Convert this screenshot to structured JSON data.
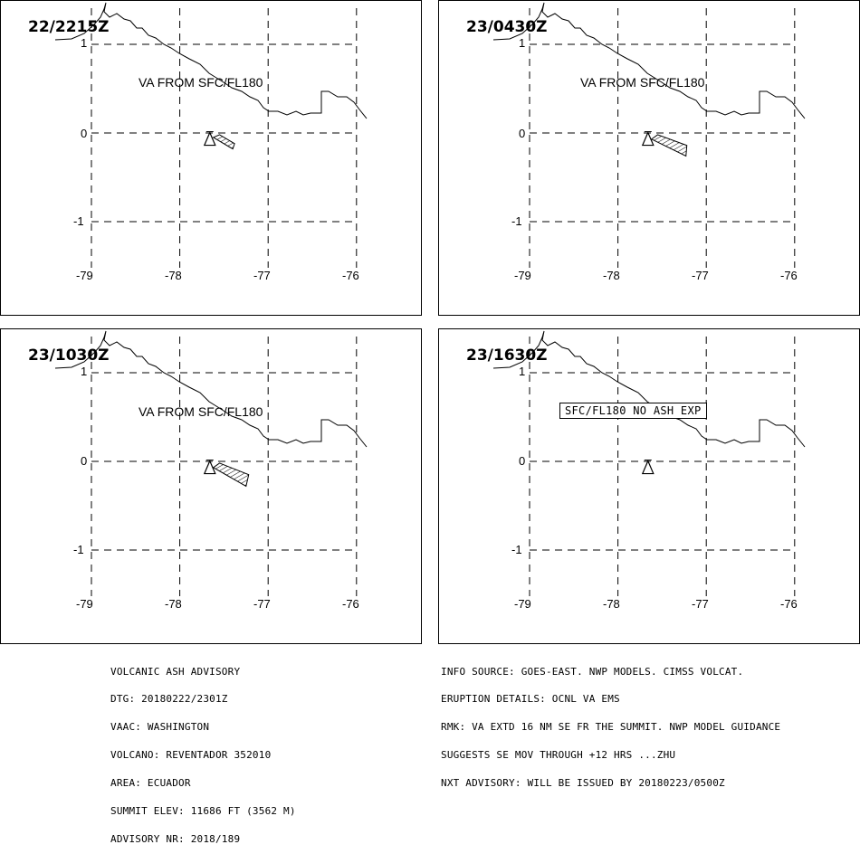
{
  "panels": [
    {
      "timestamp": "22/2215Z",
      "label": "VA FROM SFC/FL180",
      "label_boxed": false,
      "ash_polygon": [
        [
          -77.62,
          -0.05
        ],
        [
          -77.4,
          -0.18
        ],
        [
          -77.38,
          -0.12
        ],
        [
          -77.55,
          -0.02
        ]
      ],
      "show_ash": true
    },
    {
      "timestamp": "23/0430Z",
      "label": "VA FROM SFC/FL180",
      "label_boxed": false,
      "ash_polygon": [
        [
          -77.62,
          -0.07
        ],
        [
          -77.23,
          -0.26
        ],
        [
          -77.22,
          -0.14
        ],
        [
          -77.55,
          -0.02
        ]
      ],
      "show_ash": true
    },
    {
      "timestamp": "23/1030Z",
      "label": "VA FROM SFC/FL180",
      "label_boxed": false,
      "ash_polygon": [
        [
          -77.62,
          -0.07
        ],
        [
          -77.25,
          -0.28
        ],
        [
          -77.22,
          -0.15
        ],
        [
          -77.55,
          -0.02
        ]
      ],
      "show_ash": true
    },
    {
      "timestamp": "23/1630Z",
      "label": "SFC/FL180 NO ASH EXP",
      "label_boxed": true,
      "ash_polygon": [],
      "show_ash": false
    }
  ],
  "axes": {
    "lon_ticks": [
      "-79",
      "-78",
      "-77",
      "-76"
    ],
    "lat_ticks": [
      "1",
      "0",
      "-1"
    ],
    "lon_values": [
      -79,
      -78,
      -77,
      -76
    ],
    "lat_values": [
      1,
      0,
      -1
    ]
  },
  "volcano": {
    "name": "REVENTADOR",
    "lon": -77.66,
    "lat": -0.077
  },
  "advisory_left": [
    "VOLCANIC ASH ADVISORY",
    "DTG: 20180222/2301Z",
    "VAAC: WASHINGTON",
    "VOLCANO: REVENTADOR 352010",
    "AREA: ECUADOR",
    "SUMMIT ELEV: 11686 FT (3562 M)",
    "ADVISORY NR: 2018/189"
  ],
  "advisory_right": [
    "INFO SOURCE: GOES-EAST. NWP MODELS. CIMSS VOLCAT.",
    "ERUPTION DETAILS: OCNL VA EMS",
    "RMK: VA EXTD 16 NM SE FR THE SUMMIT. NWP MODEL GUIDANCE",
    "SUGGESTS SE MOV THROUGH +12 HRS ...ZHU",
    "NXT ADVISORY: WILL BE ISSUED BY 20180223/0500Z"
  ]
}
